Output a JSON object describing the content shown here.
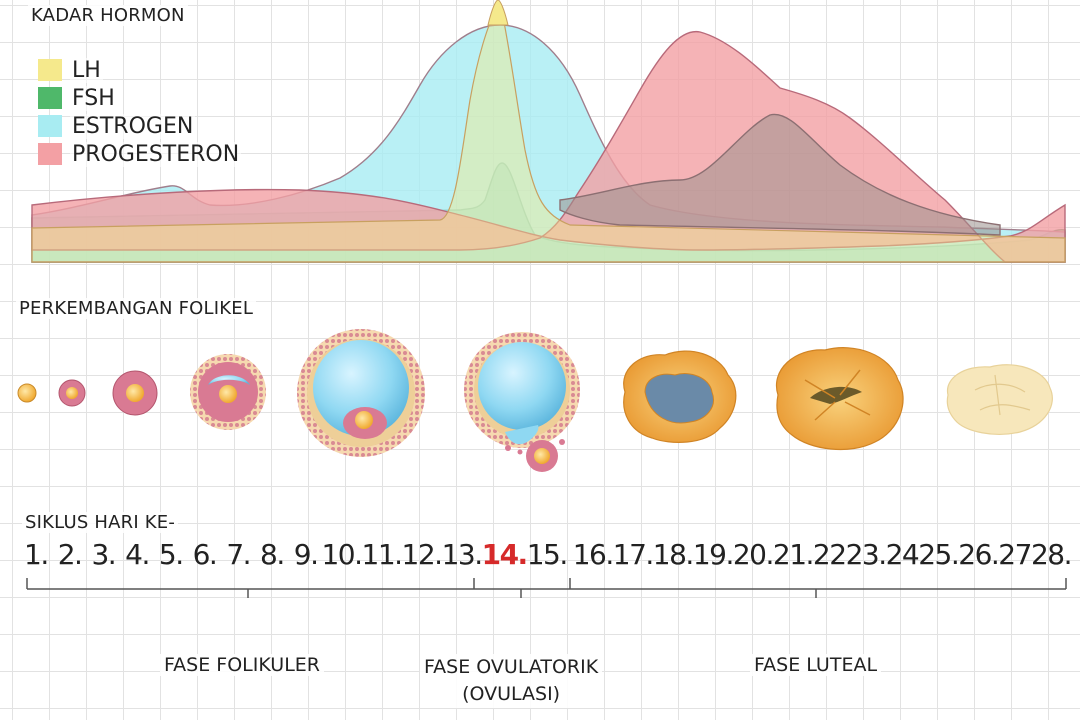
{
  "hormones": {
    "title": "KADAR HORMON",
    "legend": [
      {
        "key": "lh",
        "label": "LH",
        "color": "#f5e98c"
      },
      {
        "key": "fsh",
        "label": "FSH",
        "color": "#4fb86a"
      },
      {
        "key": "estrogen",
        "label": "ESTROGEN",
        "color": "#a8ecf2"
      },
      {
        "key": "progesteron",
        "label": "PROGESTERON",
        "color": "#f3a0a4"
      }
    ]
  },
  "follicle": {
    "title": "PERKEMBANGAN FOLIKEL",
    "stage_icons": [
      "primordial-follicle-icon",
      "primary-follicle-icon",
      "secondary-follicle-icon",
      "early-antral-follicle-icon",
      "graafian-follicle-icon",
      "ovulating-follicle-icon",
      "corpus-luteum-icon",
      "mature-corpus-luteum-icon",
      "corpus-albicans-icon"
    ],
    "colors": {
      "granulosa": "#d97a93",
      "antrum": "#8fd8f2",
      "oocyte": "#f5b843",
      "luteum": "#f2b24f",
      "albicans": "#f7e7bb"
    }
  },
  "cycle": {
    "title": "SIKLUS HARI KE-",
    "days": [
      "1.",
      "2.",
      "3.",
      "4.",
      "5.",
      "6.",
      "7.",
      "8.",
      "9.",
      "10.",
      "11.",
      "12.",
      "13.",
      "14.",
      "15.",
      "16.",
      "17.",
      "18.",
      "19.",
      "20.",
      "21.",
      "22",
      "23.",
      "24",
      "25.",
      "26.",
      "27",
      "28."
    ],
    "highlight_index": 13,
    "highlight_color": "#d62a2a"
  },
  "phases": {
    "follicular": "FASE FOLIKULER",
    "ovulatory_line1": "FASE OVULATORIK",
    "ovulatory_line2": "(OVULASI)",
    "luteal": "FASE LUTEAL"
  }
}
